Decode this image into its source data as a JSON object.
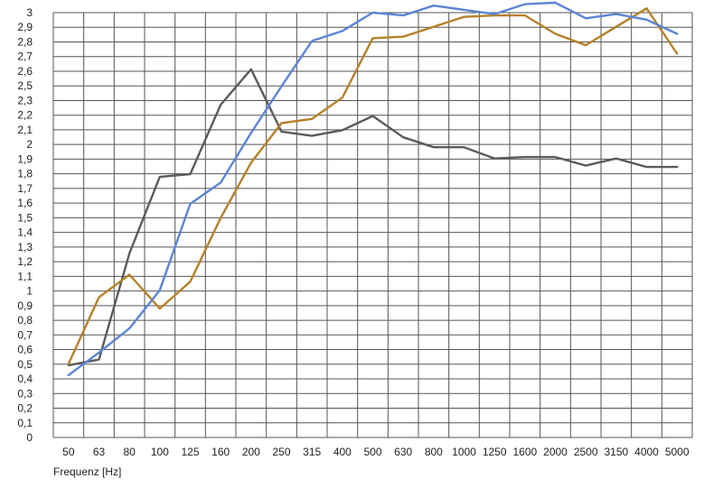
{
  "chart_data": {
    "type": "line",
    "title": "",
    "xlabel": "Frequenz [Hz]",
    "ylabel": "",
    "ylim": [
      0,
      3
    ],
    "grid": true,
    "y_ticks": [
      "0",
      "0,1",
      "0,2",
      "0,3",
      "0,4",
      "0,5",
      "0,6",
      "0,7",
      "0,8",
      "0,9",
      "1",
      "1,1",
      "1,2",
      "1,3",
      "1,4",
      "1,5",
      "1,6",
      "1,7",
      "1,8",
      "1,9",
      "2",
      "2,1",
      "2,2",
      "2,3",
      "2,5",
      "2,6",
      "2,7",
      "2,8",
      "2,9",
      "3"
    ],
    "x": [
      "50",
      "63",
      "80",
      "100",
      "125",
      "160",
      "200",
      "250",
      "315",
      "400",
      "500",
      "630",
      "800",
      "1000",
      "1250",
      "1600",
      "2000",
      "2500",
      "3150",
      "4000",
      "5000"
    ],
    "series": [
      {
        "color": "#5b5b5b",
        "values": [
          0.51,
          0.55,
          1.3,
          1.84,
          1.86,
          2.35,
          2.6,
          2.16,
          2.13,
          2.17,
          2.27,
          2.12,
          2.05,
          2.05,
          1.97,
          1.98,
          1.98,
          1.92,
          1.97,
          1.91,
          1.91
        ]
      },
      {
        "color": "#b5812a",
        "values": [
          0.52,
          0.99,
          1.15,
          0.91,
          1.1,
          1.55,
          1.94,
          2.22,
          2.25,
          2.4,
          2.82,
          2.83,
          2.9,
          2.97,
          2.98,
          2.98,
          2.85,
          2.77,
          2.9,
          3.03,
          2.71
        ]
      },
      {
        "color": "#5b85d6",
        "values": [
          0.44,
          0.6,
          0.77,
          1.04,
          1.65,
          1.8,
          2.15,
          2.48,
          2.8,
          2.87,
          3.0,
          2.98,
          3.05,
          3.02,
          2.99,
          3.06,
          3.07,
          2.96,
          2.99,
          2.95,
          2.85
        ]
      }
    ]
  }
}
